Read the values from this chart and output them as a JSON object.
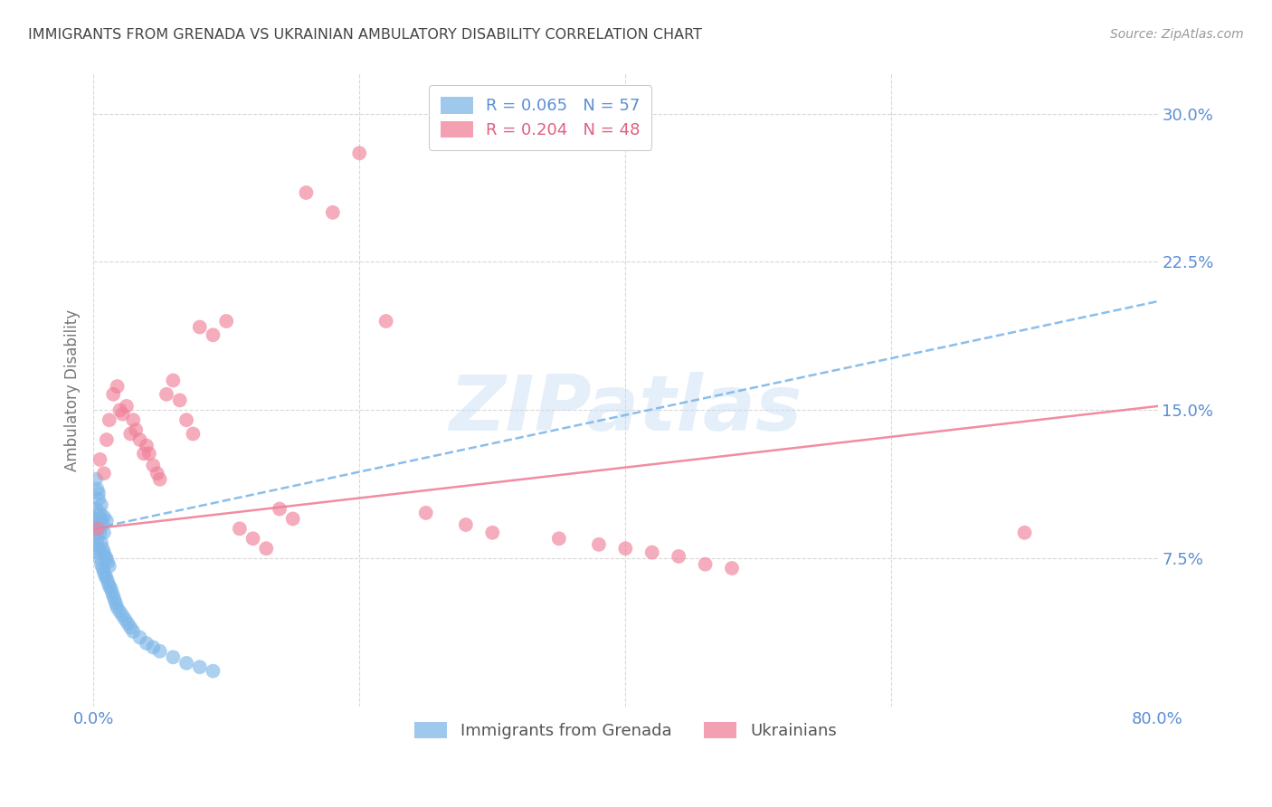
{
  "title": "IMMIGRANTS FROM GRENADA VS UKRAINIAN AMBULATORY DISABILITY CORRELATION CHART",
  "source": "Source: ZipAtlas.com",
  "ylabel": "Ambulatory Disability",
  "xlim": [
    0.0,
    0.8
  ],
  "ylim": [
    0.0,
    0.32
  ],
  "yticks": [
    0.075,
    0.15,
    0.225,
    0.3
  ],
  "ytick_labels": [
    "7.5%",
    "15.0%",
    "22.5%",
    "30.0%"
  ],
  "xticks": [
    0.0,
    0.2,
    0.4,
    0.6,
    0.8
  ],
  "xtick_labels": [
    "0.0%",
    "",
    "",
    "",
    "80.0%"
  ],
  "watermark_text": "ZIPatlas",
  "background_color": "#ffffff",
  "grid_color": "#d8d8d8",
  "tick_label_color": "#5b8ed6",
  "title_color": "#444444",
  "ylabel_color": "#777777",
  "source_color": "#999999",
  "grenada_x": [
    0.001,
    0.001,
    0.002,
    0.002,
    0.002,
    0.003,
    0.003,
    0.003,
    0.004,
    0.004,
    0.004,
    0.005,
    0.005,
    0.005,
    0.006,
    0.006,
    0.006,
    0.007,
    0.007,
    0.007,
    0.008,
    0.008,
    0.008,
    0.009,
    0.009,
    0.01,
    0.01,
    0.011,
    0.011,
    0.012,
    0.012,
    0.013,
    0.014,
    0.015,
    0.016,
    0.017,
    0.018,
    0.02,
    0.022,
    0.024,
    0.026,
    0.028,
    0.03,
    0.035,
    0.04,
    0.045,
    0.05,
    0.06,
    0.07,
    0.08,
    0.09,
    0.002,
    0.003,
    0.004,
    0.006,
    0.008,
    0.01
  ],
  "grenada_y": [
    0.088,
    0.095,
    0.082,
    0.092,
    0.1,
    0.085,
    0.093,
    0.078,
    0.08,
    0.09,
    0.105,
    0.075,
    0.088,
    0.098,
    0.072,
    0.083,
    0.095,
    0.07,
    0.08,
    0.092,
    0.068,
    0.078,
    0.088,
    0.066,
    0.076,
    0.065,
    0.075,
    0.063,
    0.073,
    0.061,
    0.071,
    0.06,
    0.058,
    0.056,
    0.054,
    0.052,
    0.05,
    0.048,
    0.046,
    0.044,
    0.042,
    0.04,
    0.038,
    0.035,
    0.032,
    0.03,
    0.028,
    0.025,
    0.022,
    0.02,
    0.018,
    0.115,
    0.11,
    0.108,
    0.102,
    0.096,
    0.094
  ],
  "grenada_color": "#7eb7e8",
  "grenada_alpha": 0.65,
  "ukrainian_x": [
    0.003,
    0.005,
    0.008,
    0.01,
    0.012,
    0.015,
    0.018,
    0.02,
    0.022,
    0.025,
    0.028,
    0.03,
    0.032,
    0.035,
    0.038,
    0.04,
    0.042,
    0.045,
    0.048,
    0.05,
    0.055,
    0.06,
    0.065,
    0.07,
    0.075,
    0.08,
    0.09,
    0.1,
    0.11,
    0.12,
    0.13,
    0.14,
    0.15,
    0.16,
    0.18,
    0.2,
    0.22,
    0.25,
    0.28,
    0.3,
    0.35,
    0.38,
    0.4,
    0.42,
    0.44,
    0.46,
    0.48,
    0.7
  ],
  "ukrainian_y": [
    0.09,
    0.125,
    0.118,
    0.135,
    0.145,
    0.158,
    0.162,
    0.15,
    0.148,
    0.152,
    0.138,
    0.145,
    0.14,
    0.135,
    0.128,
    0.132,
    0.128,
    0.122,
    0.118,
    0.115,
    0.158,
    0.165,
    0.155,
    0.145,
    0.138,
    0.192,
    0.188,
    0.195,
    0.09,
    0.085,
    0.08,
    0.1,
    0.095,
    0.26,
    0.25,
    0.28,
    0.195,
    0.098,
    0.092,
    0.088,
    0.085,
    0.082,
    0.08,
    0.078,
    0.076,
    0.072,
    0.07,
    0.088
  ],
  "ukrainian_color": "#f08098",
  "ukrainian_alpha": 0.65,
  "grenada_trend_color": "#7eb7e8",
  "grenada_trend_linestyle": "--",
  "grenada_trend_x0": 0.0,
  "grenada_trend_y0": 0.09,
  "grenada_trend_x1": 0.8,
  "grenada_trend_y1": 0.205,
  "ukrainian_trend_color": "#f08098",
  "ukrainian_trend_linestyle": "-",
  "ukrainian_trend_x0": 0.0,
  "ukrainian_trend_y0": 0.09,
  "ukrainian_trend_x1": 0.8,
  "ukrainian_trend_y1": 0.152,
  "legend1_color": "#5b8ed6",
  "legend2_color": "#e06080",
  "legend1_face": "#7eb7e8",
  "legend2_face": "#f08098",
  "legend1_text": "R = 0.065   N = 57",
  "legend2_text": "R = 0.204   N = 48",
  "bottom_legend1": "Immigrants from Grenada",
  "bottom_legend2": "Ukrainians"
}
